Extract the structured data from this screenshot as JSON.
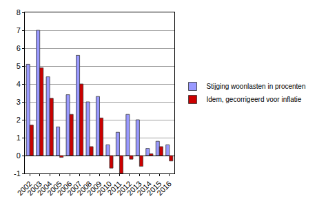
{
  "chart_data": {
    "type": "bar",
    "categories": [
      "2002",
      "2003",
      "2004",
      "2005",
      "2006",
      "2007",
      "2008",
      "2009",
      "2010",
      "2011",
      "2012",
      "2013",
      "2014",
      "2015",
      "2016"
    ],
    "series": [
      {
        "name": "Stijging woonlasten in procenten",
        "color": "#9999ff",
        "values": [
          5.1,
          7.0,
          4.4,
          1.6,
          3.4,
          5.6,
          3.0,
          3.3,
          0.6,
          1.3,
          2.3,
          2.0,
          0.4,
          0.8,
          0.6
        ]
      },
      {
        "name": "Idem, gecorrigeerd voor inflatie",
        "color": "#cc0000",
        "values": [
          1.7,
          4.9,
          3.2,
          -0.1,
          2.3,
          4.0,
          0.5,
          2.1,
          -0.7,
          -1.0,
          -0.2,
          -0.6,
          0.1,
          0.5,
          -0.3
        ]
      }
    ],
    "ylim": [
      -1,
      8
    ],
    "yticks": [
      -1,
      0,
      1,
      2,
      3,
      4,
      5,
      6,
      7,
      8
    ],
    "grid": true,
    "legend": "right"
  }
}
